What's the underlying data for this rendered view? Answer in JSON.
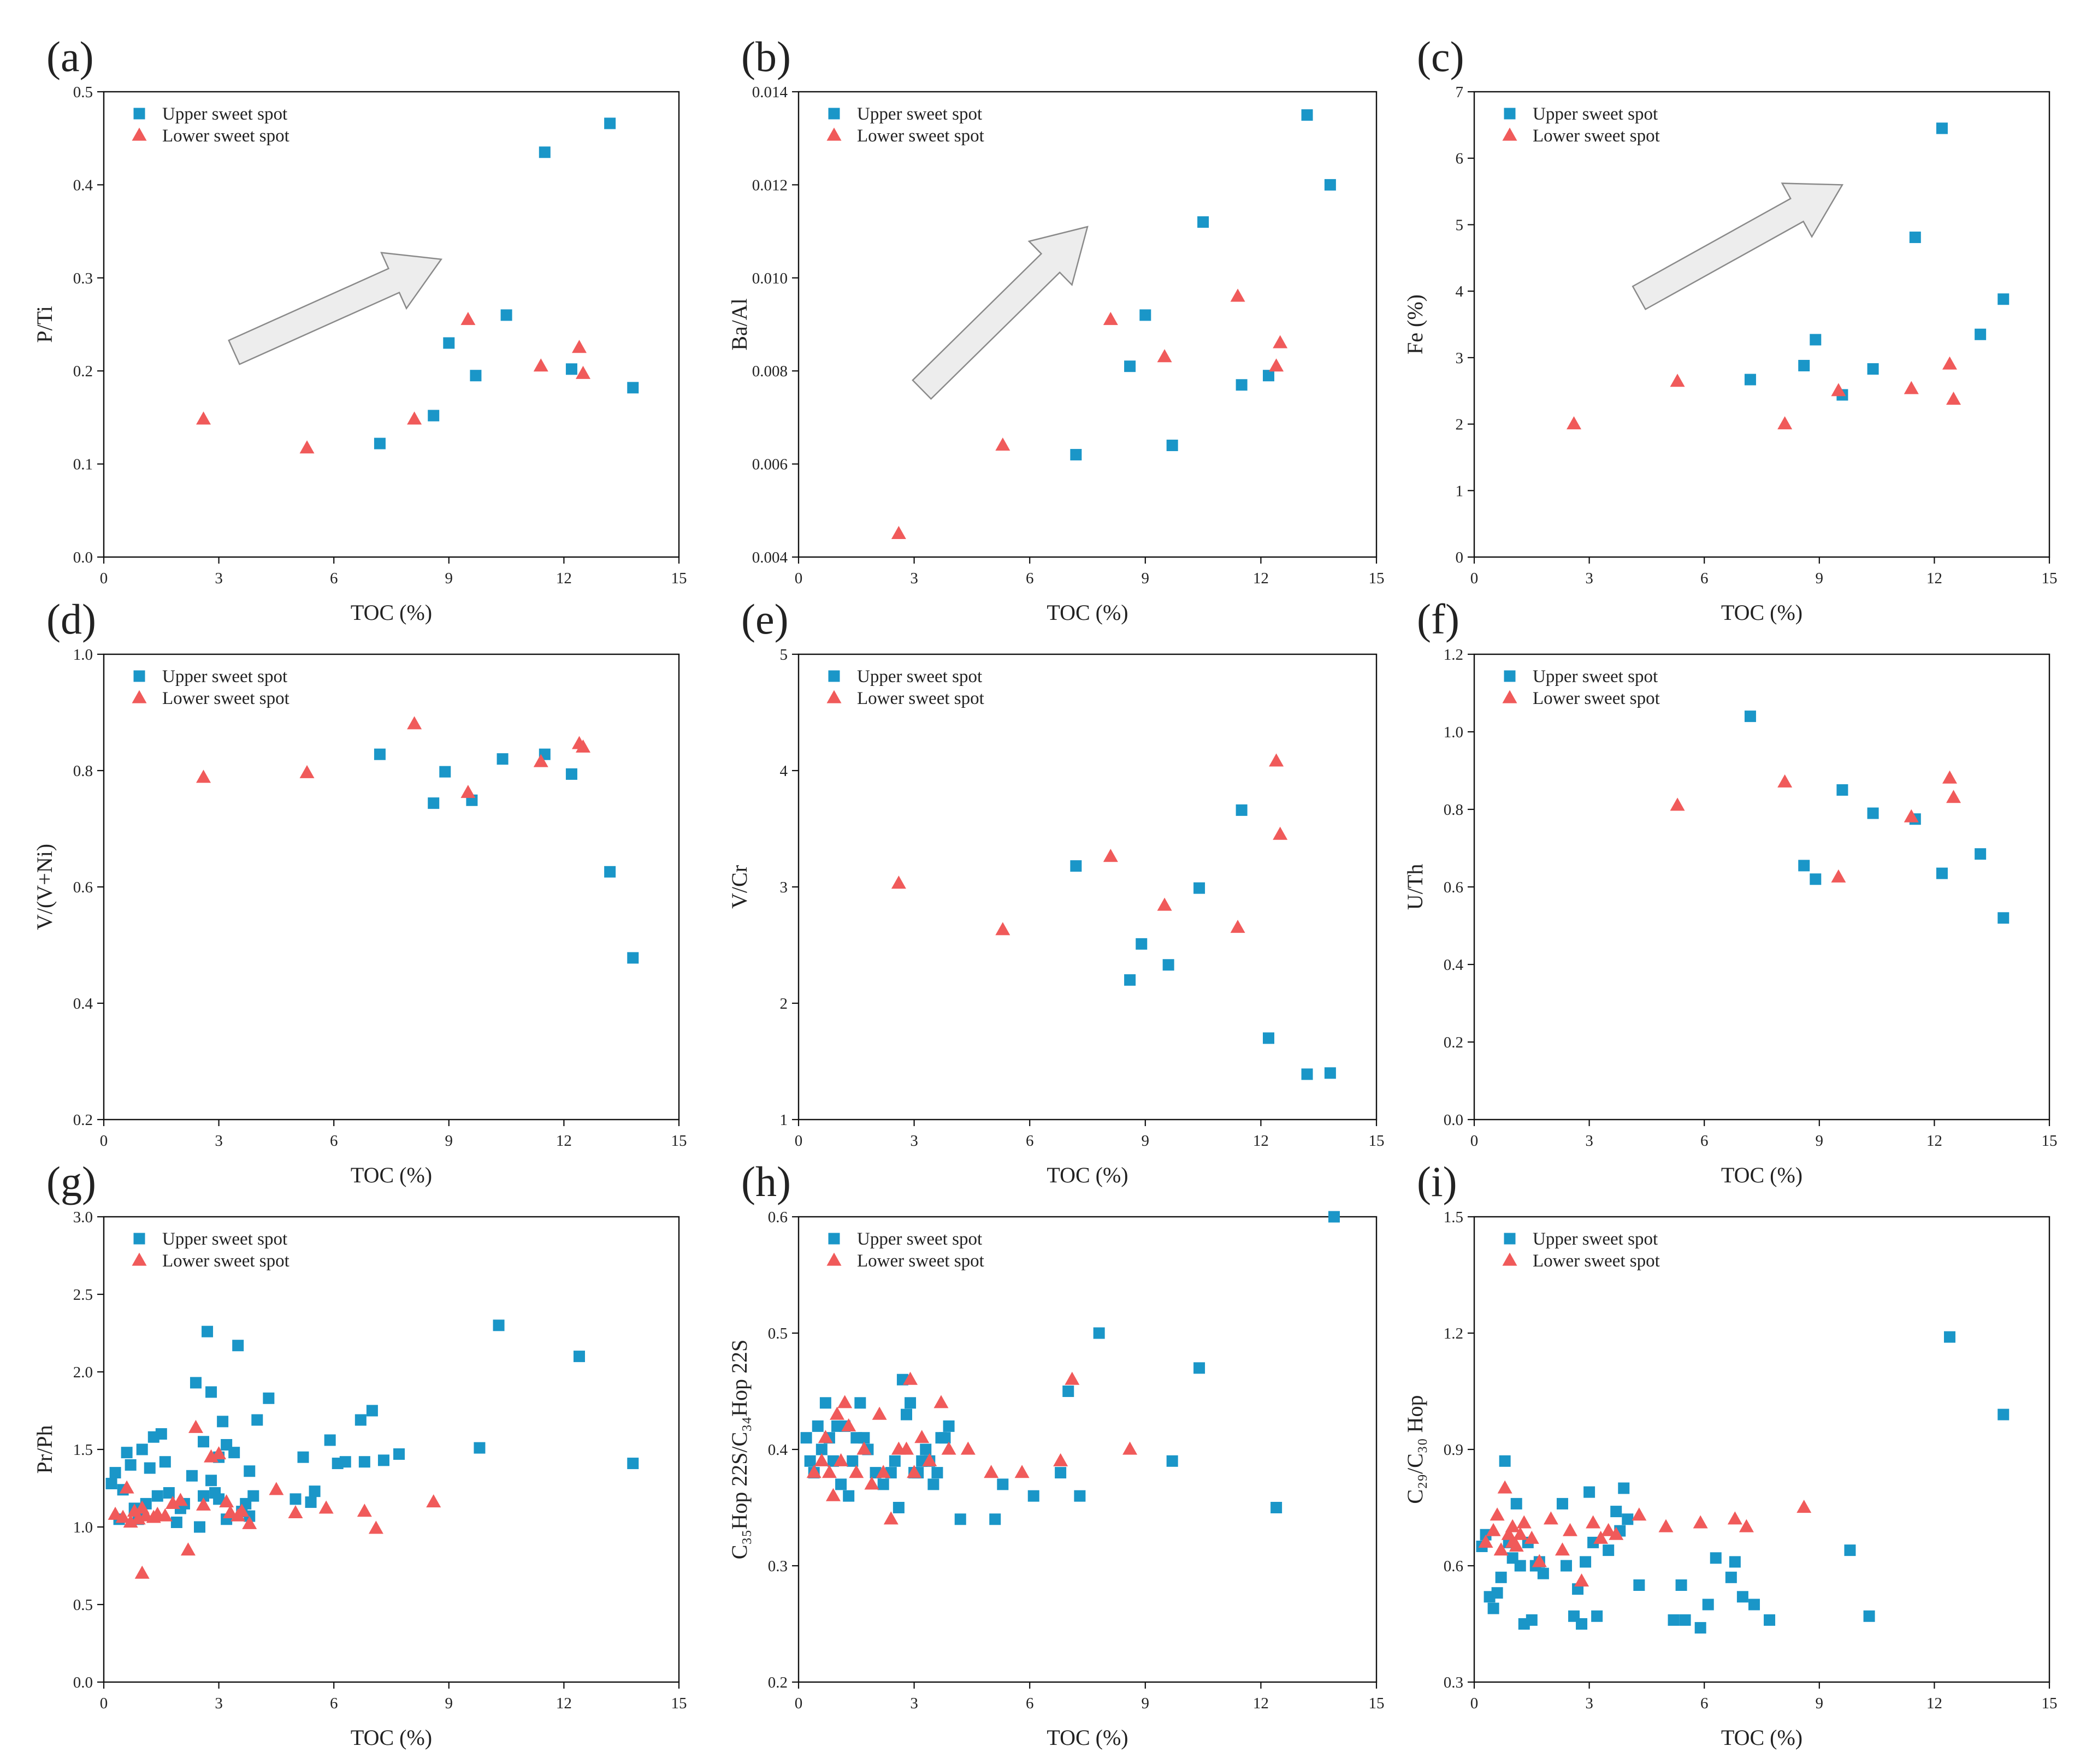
{
  "figure": {
    "colors": {
      "upper": "#1a96c8",
      "lower": "#f05a5a"
    }
  },
  "chart_data": [
    {
      "panel_label": "(a)",
      "type": "scatter",
      "xlabel": "TOC (%)",
      "ylabel": "P/Ti",
      "xlim": [
        0,
        15
      ],
      "ylim": [
        0,
        0.5
      ],
      "xticks": [
        "0",
        "3",
        "6",
        "9",
        "12",
        "15"
      ],
      "yticks": [
        "0.0",
        "0.1",
        "0.2",
        "0.3",
        "0.4",
        "0.5"
      ],
      "legend_position": "top-left",
      "arrow": {
        "from": [
          3.4,
          0.22
        ],
        "to": [
          8.8,
          0.32
        ]
      },
      "series": [
        {
          "name": "Upper sweet spot",
          "marker": "square",
          "x": [
            7.2,
            8.6,
            9.0,
            9.7,
            10.5,
            11.5,
            12.2,
            13.2,
            13.8
          ],
          "y": [
            0.122,
            0.152,
            0.23,
            0.195,
            0.26,
            0.435,
            0.202,
            0.466,
            0.182
          ]
        },
        {
          "name": "Lower sweet spot",
          "marker": "triangle",
          "x": [
            2.6,
            5.3,
            8.1,
            9.5,
            11.4,
            12.4,
            12.5
          ],
          "y": [
            0.148,
            0.117,
            0.148,
            0.255,
            0.205,
            0.225,
            0.197
          ]
        }
      ]
    },
    {
      "panel_label": "(b)",
      "type": "scatter",
      "xlabel": "TOC (%)",
      "ylabel": "Ba/Al",
      "xlim": [
        0,
        15
      ],
      "ylim": [
        0.004,
        0.014
      ],
      "xticks": [
        "0",
        "3",
        "6",
        "9",
        "12",
        "15"
      ],
      "yticks": [
        "0.004",
        "0.006",
        "0.008",
        "0.010",
        "0.012",
        "0.014"
      ],
      "legend_position": "top-left",
      "arrow": {
        "from": [
          3.2,
          0.0076
        ],
        "to": [
          7.5,
          0.0111
        ]
      },
      "series": [
        {
          "name": "Upper sweet spot",
          "marker": "square",
          "x": [
            7.2,
            8.6,
            9.0,
            9.7,
            10.5,
            11.5,
            12.2,
            13.2,
            13.8
          ],
          "y": [
            0.0062,
            0.0081,
            0.0092,
            0.0064,
            0.0112,
            0.0077,
            0.0079,
            0.0135,
            0.012
          ]
        },
        {
          "name": "Lower sweet spot",
          "marker": "triangle",
          "x": [
            2.6,
            5.3,
            8.1,
            9.5,
            11.4,
            12.4,
            12.5
          ],
          "y": [
            0.0045,
            0.0064,
            0.0091,
            0.0083,
            0.0096,
            0.0081,
            0.0086
          ]
        }
      ]
    },
    {
      "panel_label": "(c)",
      "type": "scatter",
      "xlabel": "TOC (%)",
      "ylabel": "Fe (%)",
      "xlim": [
        0,
        15
      ],
      "ylim": [
        0,
        7
      ],
      "xticks": [
        "0",
        "3",
        "6",
        "9",
        "12",
        "15"
      ],
      "yticks": [
        "0",
        "1",
        "2",
        "3",
        "4",
        "5",
        "6",
        "7"
      ],
      "legend_position": "top-left",
      "arrow": {
        "from": [
          4.3,
          3.9
        ],
        "to": [
          9.6,
          5.6
        ]
      },
      "series": [
        {
          "name": "Upper sweet spot",
          "marker": "square",
          "x": [
            7.2,
            8.6,
            8.9,
            9.6,
            10.4,
            11.5,
            12.2,
            13.2,
            13.8
          ],
          "y": [
            2.67,
            2.88,
            3.27,
            2.44,
            2.83,
            4.81,
            6.45,
            3.35,
            3.88
          ]
        },
        {
          "name": "Lower sweet spot",
          "marker": "triangle",
          "x": [
            2.6,
            5.3,
            8.1,
            9.5,
            11.4,
            12.4,
            12.5
          ],
          "y": [
            2.0,
            2.64,
            2.0,
            2.5,
            2.53,
            2.9,
            2.37
          ]
        }
      ]
    },
    {
      "panel_label": "(d)",
      "type": "scatter",
      "xlabel": "TOC (%)",
      "ylabel": "V/(V+Ni)",
      "xlim": [
        0,
        15
      ],
      "ylim": [
        0.2,
        1.0
      ],
      "xticks": [
        "0",
        "3",
        "6",
        "9",
        "12",
        "15"
      ],
      "yticks": [
        "0.2",
        "0.4",
        "0.6",
        "0.8",
        "1.0"
      ],
      "legend_position": "top-left",
      "series": [
        {
          "name": "Upper sweet spot",
          "marker": "square",
          "x": [
            7.2,
            8.6,
            8.9,
            9.6,
            10.4,
            11.5,
            12.2,
            13.2,
            13.8
          ],
          "y": [
            0.828,
            0.744,
            0.798,
            0.749,
            0.82,
            0.828,
            0.794,
            0.626,
            0.478
          ]
        },
        {
          "name": "Lower sweet spot",
          "marker": "triangle",
          "x": [
            2.6,
            5.3,
            8.1,
            9.5,
            11.4,
            12.4,
            12.5
          ],
          "y": [
            0.788,
            0.796,
            0.88,
            0.762,
            0.815,
            0.846,
            0.84
          ]
        }
      ]
    },
    {
      "panel_label": "(e)",
      "type": "scatter",
      "xlabel": "TOC (%)",
      "ylabel": "V/Cr",
      "xlim": [
        0,
        15
      ],
      "ylim": [
        1,
        5
      ],
      "xticks": [
        "0",
        "3",
        "6",
        "9",
        "12",
        "15"
      ],
      "yticks": [
        "1",
        "2",
        "3",
        "4",
        "5"
      ],
      "legend_position": "top-left",
      "series": [
        {
          "name": "Upper sweet spot",
          "marker": "square",
          "x": [
            7.2,
            8.6,
            8.9,
            9.6,
            10.4,
            11.5,
            12.2,
            13.2,
            13.8
          ],
          "y": [
            3.18,
            2.2,
            2.51,
            2.33,
            2.99,
            3.66,
            1.7,
            1.39,
            1.4
          ]
        },
        {
          "name": "Lower sweet spot",
          "marker": "triangle",
          "x": [
            2.6,
            5.3,
            8.1,
            9.5,
            11.4,
            12.4,
            12.5
          ],
          "y": [
            3.03,
            2.63,
            3.26,
            2.84,
            2.65,
            4.08,
            3.45
          ]
        }
      ]
    },
    {
      "panel_label": "(f)",
      "type": "scatter",
      "xlabel": "TOC (%)",
      "ylabel": "U/Th",
      "xlim": [
        0,
        15
      ],
      "ylim": [
        0,
        1.2
      ],
      "xticks": [
        "0",
        "3",
        "6",
        "9",
        "12",
        "15"
      ],
      "yticks": [
        "0.0",
        "0.2",
        "0.4",
        "0.6",
        "0.8",
        "1.0",
        "1.2"
      ],
      "legend_position": "top-left",
      "series": [
        {
          "name": "Upper sweet spot",
          "marker": "square",
          "x": [
            7.2,
            8.6,
            8.9,
            9.6,
            10.4,
            11.5,
            12.2,
            13.2,
            13.8
          ],
          "y": [
            1.04,
            0.655,
            0.62,
            0.85,
            0.79,
            0.775,
            0.635,
            0.685,
            0.52
          ]
        },
        {
          "name": "Lower sweet spot",
          "marker": "triangle",
          "x": [
            5.3,
            8.1,
            9.5,
            11.4,
            12.4,
            12.5
          ],
          "y": [
            0.81,
            0.87,
            0.625,
            0.78,
            0.88,
            0.83
          ]
        }
      ]
    },
    {
      "panel_label": "(g)",
      "type": "scatter",
      "xlabel": "TOC (%)",
      "ylabel": "Pr/Ph",
      "xlim": [
        0,
        15
      ],
      "ylim": [
        0,
        3.0
      ],
      "xticks": [
        "0",
        "3",
        "6",
        "9",
        "12",
        "15"
      ],
      "yticks": [
        "0.0",
        "0.5",
        "1.0",
        "1.5",
        "2.0",
        "2.5",
        "3.0"
      ],
      "legend_position": "top-left",
      "series": [
        {
          "name": "Upper sweet spot",
          "marker": "square",
          "x": [
            0.2,
            0.3,
            0.4,
            0.5,
            0.6,
            0.7,
            0.8,
            0.9,
            1.0,
            1.1,
            1.2,
            1.3,
            1.4,
            1.5,
            1.6,
            1.7,
            1.9,
            2.0,
            2.1,
            2.3,
            2.4,
            2.5,
            2.6,
            2.6,
            2.7,
            2.8,
            2.8,
            2.9,
            3.0,
            3.0,
            3.1,
            3.2,
            3.2,
            3.4,
            3.5,
            3.6,
            3.7,
            3.8,
            3.8,
            3.9,
            4.0,
            4.3,
            5.0,
            5.2,
            5.4,
            5.5,
            5.9,
            6.1,
            6.3,
            6.7,
            6.8,
            7.0,
            7.3,
            7.7,
            9.8,
            10.3,
            12.4,
            13.8
          ],
          "y": [
            1.28,
            1.35,
            1.05,
            1.24,
            1.48,
            1.4,
            1.12,
            1.05,
            1.5,
            1.15,
            1.38,
            1.58,
            1.2,
            1.6,
            1.42,
            1.22,
            1.03,
            1.12,
            1.15,
            1.33,
            1.93,
            1.0,
            1.2,
            1.55,
            2.26,
            1.3,
            1.87,
            1.22,
            1.45,
            1.18,
            1.68,
            1.53,
            1.05,
            1.48,
            2.17,
            1.1,
            1.15,
            1.36,
            1.07,
            1.2,
            1.69,
            1.83,
            1.18,
            1.45,
            1.16,
            1.23,
            1.56,
            1.41,
            1.42,
            1.69,
            1.42,
            1.75,
            1.43,
            1.47,
            1.51,
            2.3,
            2.1,
            1.41
          ]
        },
        {
          "name": "Lower sweet spot",
          "marker": "triangle",
          "x": [
            0.3,
            0.5,
            0.6,
            0.7,
            0.8,
            0.9,
            1.0,
            1.0,
            1.1,
            1.3,
            1.4,
            1.6,
            1.8,
            2.0,
            2.2,
            2.4,
            2.6,
            2.8,
            3.0,
            3.2,
            3.3,
            3.5,
            3.6,
            3.8,
            4.5,
            5.0,
            5.8,
            6.8,
            7.1,
            8.6
          ],
          "y": [
            1.08,
            1.06,
            1.25,
            1.03,
            1.1,
            1.05,
            1.12,
            0.7,
            1.07,
            1.06,
            1.08,
            1.07,
            1.15,
            1.17,
            0.85,
            1.64,
            1.14,
            1.45,
            1.47,
            1.16,
            1.09,
            1.07,
            1.1,
            1.02,
            1.24,
            1.09,
            1.12,
            1.1,
            0.99,
            1.16
          ]
        }
      ]
    },
    {
      "panel_label": "(h)",
      "type": "scatter",
      "xlabel": "TOC (%)",
      "ylabel": "C₃₅Hop 22S/C₃₄Hop 22S",
      "xlim": [
        0,
        15
      ],
      "ylim": [
        0.2,
        0.6
      ],
      "xticks": [
        "0",
        "3",
        "6",
        "9",
        "12",
        "15"
      ],
      "yticks": [
        "0.2",
        "0.3",
        "0.4",
        "0.5",
        "0.6"
      ],
      "legend_position": "top-left",
      "series": [
        {
          "name": "Upper sweet spot",
          "marker": "square",
          "x": [
            0.2,
            0.3,
            0.4,
            0.5,
            0.6,
            0.7,
            0.8,
            0.9,
            1.0,
            1.1,
            1.2,
            1.3,
            1.4,
            1.5,
            1.6,
            1.7,
            1.8,
            2.0,
            2.2,
            2.4,
            2.5,
            2.6,
            2.7,
            2.8,
            2.9,
            3.0,
            3.1,
            3.2,
            3.3,
            3.4,
            3.5,
            3.6,
            3.7,
            3.8,
            3.9,
            4.2,
            5.1,
            5.3,
            6.1,
            6.8,
            7.0,
            7.3,
            7.8,
            9.7,
            10.4,
            12.4,
            13.9
          ],
          "y": [
            0.41,
            0.39,
            0.38,
            0.42,
            0.4,
            0.44,
            0.41,
            0.39,
            0.42,
            0.37,
            0.42,
            0.36,
            0.39,
            0.41,
            0.44,
            0.41,
            0.4,
            0.38,
            0.37,
            0.38,
            0.39,
            0.35,
            0.46,
            0.43,
            0.44,
            0.38,
            0.38,
            0.39,
            0.4,
            0.39,
            0.37,
            0.38,
            0.41,
            0.41,
            0.42,
            0.34,
            0.34,
            0.37,
            0.36,
            0.38,
            0.45,
            0.36,
            0.5,
            0.39,
            0.47,
            0.35,
            0.6
          ]
        },
        {
          "name": "Lower sweet spot",
          "marker": "triangle",
          "x": [
            0.4,
            0.6,
            0.7,
            0.8,
            0.9,
            1.0,
            1.1,
            1.2,
            1.3,
            1.5,
            1.7,
            1.9,
            2.1,
            2.2,
            2.4,
            2.6,
            2.8,
            2.9,
            3.0,
            3.2,
            3.4,
            3.7,
            3.9,
            4.4,
            5.0,
            5.8,
            6.8,
            7.1,
            8.6
          ],
          "y": [
            0.38,
            0.39,
            0.41,
            0.38,
            0.36,
            0.43,
            0.39,
            0.44,
            0.42,
            0.38,
            0.4,
            0.37,
            0.43,
            0.38,
            0.34,
            0.4,
            0.4,
            0.46,
            0.38,
            0.41,
            0.39,
            0.44,
            0.4,
            0.4,
            0.38,
            0.38,
            0.39,
            0.46,
            0.4
          ]
        }
      ]
    },
    {
      "panel_label": "(i)",
      "type": "scatter",
      "xlabel": "TOC (%)",
      "ylabel": "C₂₉/C₃₀ Hop",
      "xlim": [
        0,
        15
      ],
      "ylim": [
        0.3,
        1.5
      ],
      "xticks": [
        "0",
        "3",
        "6",
        "9",
        "12",
        "15"
      ],
      "yticks": [
        "0.3",
        "0.6",
        "0.9",
        "1.2",
        "1.5"
      ],
      "legend_position": "top-left",
      "series": [
        {
          "name": "Upper sweet spot",
          "marker": "square",
          "x": [
            0.2,
            0.3,
            0.4,
            0.5,
            0.6,
            0.7,
            0.8,
            0.9,
            1.0,
            1.1,
            1.2,
            1.3,
            1.4,
            1.5,
            1.6,
            1.7,
            1.8,
            2.3,
            2.4,
            2.6,
            2.7,
            2.8,
            2.9,
            3.0,
            3.1,
            3.2,
            3.5,
            3.7,
            3.8,
            3.9,
            4.0,
            4.3,
            5.2,
            5.4,
            5.5,
            5.9,
            6.1,
            6.3,
            6.7,
            6.8,
            7.0,
            7.3,
            7.7,
            9.8,
            10.3,
            12.4,
            13.8
          ],
          "y": [
            0.65,
            0.68,
            0.52,
            0.49,
            0.53,
            0.57,
            0.87,
            0.66,
            0.62,
            0.76,
            0.6,
            0.45,
            0.66,
            0.46,
            0.6,
            0.61,
            0.58,
            0.76,
            0.6,
            0.47,
            0.54,
            0.45,
            0.61,
            0.79,
            0.66,
            0.47,
            0.64,
            0.74,
            0.69,
            0.8,
            0.72,
            0.55,
            0.46,
            0.55,
            0.46,
            0.44,
            0.5,
            0.62,
            0.57,
            0.61,
            0.52,
            0.5,
            0.46,
            0.64,
            0.47,
            1.19,
            0.99
          ]
        },
        {
          "name": "Lower sweet spot",
          "marker": "triangle",
          "x": [
            0.3,
            0.5,
            0.6,
            0.7,
            0.8,
            0.9,
            1.0,
            1.0,
            1.1,
            1.2,
            1.3,
            1.5,
            1.7,
            2.0,
            2.3,
            2.5,
            2.8,
            3.1,
            3.3,
            3.5,
            3.7,
            4.3,
            5.0,
            5.9,
            6.8,
            7.1,
            8.6
          ],
          "y": [
            0.66,
            0.69,
            0.73,
            0.64,
            0.8,
            0.68,
            0.7,
            0.66,
            0.65,
            0.68,
            0.71,
            0.67,
            0.61,
            0.72,
            0.64,
            0.69,
            0.56,
            0.71,
            0.67,
            0.69,
            0.68,
            0.73,
            0.7,
            0.71,
            0.72,
            0.7,
            0.75
          ]
        }
      ]
    }
  ]
}
